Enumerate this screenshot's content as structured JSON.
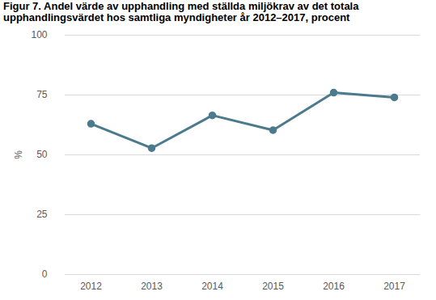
{
  "chart_data": {
    "type": "line",
    "title": "Figur 7. Andel värde av upphandling med ställda miljökrav av det totala upphandlingsvärdet hos samtliga myndigheter år 2012–2017, procent",
    "y_label": "%",
    "categories": [
      "2012",
      "2013",
      "2014",
      "2015",
      "2016",
      "2017"
    ],
    "values": [
      63,
      52.8,
      66.5,
      60.3,
      76,
      74
    ],
    "color": "#4a7a8c",
    "marker": "circle",
    "ylim": [
      0,
      100
    ],
    "yticks": [
      0,
      25,
      50,
      75,
      100
    ],
    "grid": true
  }
}
